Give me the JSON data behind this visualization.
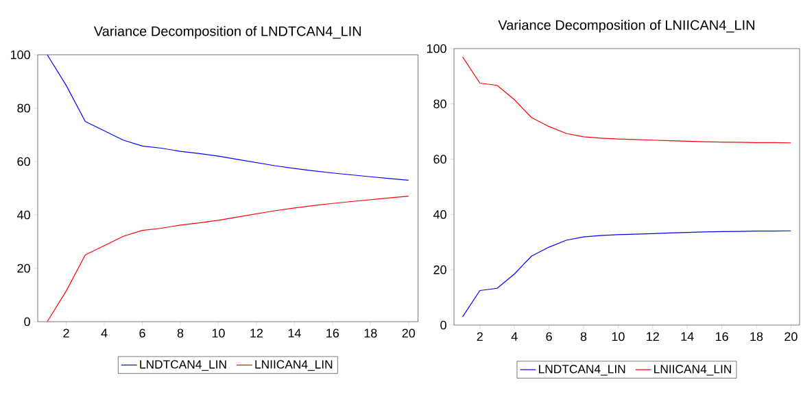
{
  "chart_data": [
    {
      "type": "line",
      "title": "Variance Decomposition of LNDTCAN4_LIN",
      "x": [
        1,
        2,
        3,
        4,
        5,
        6,
        7,
        8,
        9,
        10,
        11,
        12,
        13,
        14,
        15,
        16,
        17,
        18,
        19,
        20
      ],
      "series": [
        {
          "name": "LNDTCAN4_LIN",
          "color": "#0000ff",
          "values": [
            100,
            88.5,
            75,
            71.5,
            68,
            65.8,
            65,
            63.8,
            63,
            62,
            60.8,
            59.6,
            58.4,
            57.4,
            56.5,
            55.7,
            55,
            54.3,
            53.6,
            53
          ]
        },
        {
          "name": "LNIICAN4_LIN",
          "color": "#ff0000",
          "values": [
            0,
            11.5,
            25,
            28.5,
            32,
            34.2,
            35,
            36.2,
            37,
            38,
            39.2,
            40.4,
            41.6,
            42.6,
            43.5,
            44.3,
            45,
            45.7,
            46.4,
            47
          ]
        }
      ],
      "xlim": [
        0.5,
        20.5
      ],
      "xticks": [
        2,
        4,
        6,
        8,
        10,
        12,
        14,
        16,
        18,
        20
      ],
      "ylim": [
        0,
        100
      ],
      "yticks": [
        0,
        20,
        40,
        60,
        80,
        100
      ],
      "legend": "bottom"
    },
    {
      "type": "line",
      "title": "Variance Decomposition of LNIICAN4_LIN",
      "x": [
        1,
        2,
        3,
        4,
        5,
        6,
        7,
        8,
        9,
        10,
        11,
        12,
        13,
        14,
        15,
        16,
        17,
        18,
        19,
        20
      ],
      "series": [
        {
          "name": "LNDTCAN4_LIN",
          "color": "#0000ff",
          "values": [
            3,
            12.5,
            13.3,
            18.5,
            25,
            28.2,
            30.7,
            31.9,
            32.4,
            32.7,
            32.9,
            33.1,
            33.3,
            33.5,
            33.7,
            33.8,
            33.9,
            34,
            34,
            34.1
          ]
        },
        {
          "name": "LNIICAN4_LIN",
          "color": "#ff0000",
          "values": [
            97,
            87.5,
            86.7,
            81.5,
            75,
            71.8,
            69.3,
            68.1,
            67.6,
            67.3,
            67.1,
            66.9,
            66.7,
            66.5,
            66.3,
            66.2,
            66.1,
            66,
            66,
            65.9
          ]
        }
      ],
      "xlim": [
        0.5,
        20.5
      ],
      "xticks": [
        2,
        4,
        6,
        8,
        10,
        12,
        14,
        16,
        18,
        20
      ],
      "ylim": [
        0,
        100
      ],
      "yticks": [
        0,
        20,
        40,
        60,
        80,
        100
      ],
      "legend": "bottom"
    }
  ]
}
